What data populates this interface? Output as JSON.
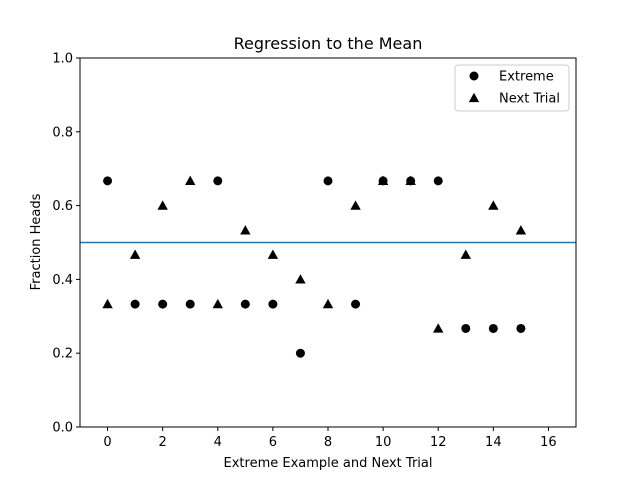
{
  "chart_data": {
    "type": "scatter",
    "title": "Regression to the Mean",
    "xlabel": "Extreme Example and Next Trial",
    "ylabel": "Fraction Heads",
    "xlim": [
      -1,
      17
    ],
    "ylim": [
      0.0,
      1.0
    ],
    "xticks": [
      0,
      2,
      4,
      6,
      8,
      10,
      12,
      14,
      16
    ],
    "yticks": [
      0.0,
      0.2,
      0.4,
      0.6,
      0.8,
      1.0
    ],
    "ytick_labels": [
      "0.0",
      "0.2",
      "0.4",
      "0.6",
      "0.8",
      "1.0"
    ],
    "grid": false,
    "legend_position": "top-right",
    "series": [
      {
        "name": "Extreme",
        "marker": "circle",
        "color": "#000000",
        "x": [
          0,
          1,
          2,
          3,
          4,
          5,
          6,
          7,
          8,
          9,
          10,
          11,
          12,
          13,
          14,
          15
        ],
        "y": [
          0.667,
          0.333,
          0.333,
          0.333,
          0.667,
          0.333,
          0.333,
          0.2,
          0.667,
          0.333,
          0.667,
          0.667,
          0.667,
          0.267,
          0.267,
          0.267
        ]
      },
      {
        "name": "Next Trial",
        "marker": "triangle",
        "color": "#000000",
        "x": [
          0,
          1,
          2,
          3,
          4,
          5,
          6,
          7,
          8,
          9,
          10,
          11,
          12,
          13,
          14,
          15
        ],
        "y": [
          0.333,
          0.467,
          0.6,
          0.667,
          0.333,
          0.533,
          0.467,
          0.4,
          0.333,
          0.6,
          0.667,
          0.667,
          0.267,
          0.467,
          0.6,
          0.533
        ]
      }
    ],
    "reference_line": {
      "y": 0.5,
      "color": "#1f77b4"
    }
  }
}
